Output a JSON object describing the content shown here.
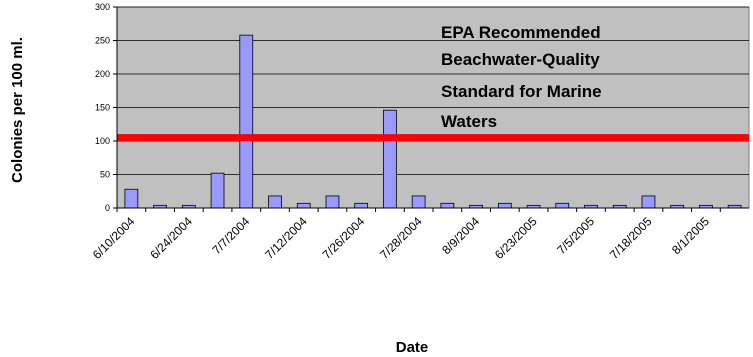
{
  "chart_data": {
    "type": "bar",
    "title": "",
    "xlabel": "Date",
    "ylabel": "Colonies per 100 ml.",
    "ylim": [
      0,
      300
    ],
    "yticks": [
      0,
      50,
      100,
      150,
      200,
      250,
      300
    ],
    "grid": true,
    "x_tick_labels": [
      "6/10/2004",
      "6/24/2004",
      "7/7/2004",
      "7/12/2004",
      "7/26/2004",
      "7/28/2004",
      "8/9/2004",
      "6/23/2005",
      "7/5/2005",
      "7/18/2005",
      "8/1/2005"
    ],
    "values": [
      28,
      4,
      4,
      52,
      258,
      18,
      7,
      18,
      7,
      146,
      18,
      7,
      4,
      7,
      4,
      7,
      4,
      4,
      18,
      4,
      4,
      4
    ],
    "reference_line": {
      "value": 105,
      "color": "#ff0000",
      "label_lines": [
        "EPA Recommended",
        "Beachwater-Quality",
        "Standard for Marine",
        "Waters"
      ]
    },
    "colors": {
      "plot_background": "#c0c0c0",
      "bar_fill": "#9999ff",
      "bar_stroke": "#000000",
      "gridline": "#000000"
    }
  }
}
